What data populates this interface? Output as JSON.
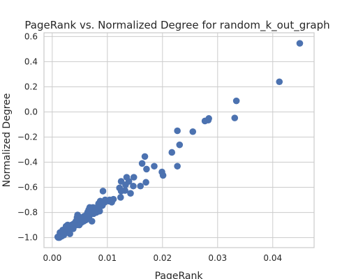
{
  "chart_data": {
    "type": "scatter",
    "title": "PageRank vs. Normalized Degree for random_k_out_graph",
    "xlabel": "PageRank",
    "ylabel": "Normalized Degree",
    "xlim": [
      -0.0015,
      0.0475
    ],
    "ylim": [
      -1.08,
      0.63
    ],
    "xticks": [
      0.0,
      0.01,
      0.02,
      0.03,
      0.04
    ],
    "xtick_labels": [
      "0.00",
      "0.01",
      "0.02",
      "0.03",
      "0.04"
    ],
    "yticks": [
      -1.0,
      -0.8,
      -0.6,
      -0.4,
      -0.2,
      0.0,
      0.2,
      0.4,
      0.6
    ],
    "ytick_labels": [
      "−1.0",
      "−0.8",
      "−0.6",
      "−0.4",
      "−0.2",
      "0.0",
      "0.2",
      "0.4",
      "0.6"
    ],
    "grid": true,
    "color": "#4c72b0",
    "points": [
      [
        0.0449,
        0.546
      ],
      [
        0.0412,
        0.24
      ],
      [
        0.0334,
        0.088
      ],
      [
        0.0331,
        -0.048
      ],
      [
        0.0284,
        -0.052
      ],
      [
        0.0283,
        -0.065
      ],
      [
        0.0277,
        -0.072
      ],
      [
        0.0255,
        -0.157
      ],
      [
        0.0227,
        -0.15
      ],
      [
        0.0231,
        -0.262
      ],
      [
        0.0217,
        -0.322
      ],
      [
        0.0227,
        -0.432
      ],
      [
        0.0199,
        -0.478
      ],
      [
        0.0201,
        -0.505
      ],
      [
        0.0185,
        -0.432
      ],
      [
        0.0168,
        -0.355
      ],
      [
        0.0163,
        -0.41
      ],
      [
        0.0171,
        -0.455
      ],
      [
        0.017,
        -0.56
      ],
      [
        0.016,
        -0.59
      ],
      [
        0.0148,
        -0.52
      ],
      [
        0.0139,
        -0.553
      ],
      [
        0.0147,
        -0.59
      ],
      [
        0.0135,
        -0.52
      ],
      [
        0.0133,
        -0.58
      ],
      [
        0.0132,
        -0.625
      ],
      [
        0.0142,
        -0.648
      ],
      [
        0.0125,
        -0.553
      ],
      [
        0.0122,
        -0.605
      ],
      [
        0.0125,
        -0.63
      ],
      [
        0.0124,
        -0.68
      ],
      [
        0.0111,
        -0.695
      ],
      [
        0.0108,
        -0.718
      ],
      [
        0.0104,
        -0.7
      ],
      [
        0.0103,
        -0.71
      ],
      [
        0.0096,
        -0.7
      ],
      [
        0.0095,
        -0.72
      ],
      [
        0.0092,
        -0.63
      ],
      [
        0.0091,
        -0.745
      ],
      [
        0.0088,
        -0.75
      ],
      [
        0.0084,
        -0.73
      ],
      [
        0.0081,
        -0.76
      ],
      [
        0.0086,
        -0.79
      ],
      [
        0.008,
        -0.8
      ],
      [
        0.0077,
        -0.79
      ],
      [
        0.0075,
        -0.81
      ],
      [
        0.0074,
        -0.76
      ],
      [
        0.0072,
        -0.785
      ],
      [
        0.007,
        -0.8
      ],
      [
        0.0068,
        -0.76
      ],
      [
        0.0066,
        -0.78
      ],
      [
        0.0064,
        -0.8
      ],
      [
        0.0062,
        -0.82
      ],
      [
        0.0064,
        -0.85
      ],
      [
        0.0067,
        -0.83
      ],
      [
        0.0072,
        -0.87
      ],
      [
        0.0058,
        -0.83
      ],
      [
        0.0057,
        -0.87
      ],
      [
        0.0055,
        -0.86
      ],
      [
        0.0053,
        -0.88
      ],
      [
        0.005,
        -0.86
      ],
      [
        0.0048,
        -0.88
      ],
      [
        0.0046,
        -0.82
      ],
      [
        0.0045,
        -0.84
      ],
      [
        0.0044,
        -0.9
      ],
      [
        0.0043,
        -0.87
      ],
      [
        0.0041,
        -0.9
      ],
      [
        0.0039,
        -0.89
      ],
      [
        0.0037,
        -0.92
      ],
      [
        0.0035,
        -0.9
      ],
      [
        0.0033,
        -0.93
      ],
      [
        0.0031,
        -0.91
      ],
      [
        0.0029,
        -0.95
      ],
      [
        0.0028,
        -0.9
      ],
      [
        0.0026,
        -0.92
      ],
      [
        0.0024,
        -0.96
      ],
      [
        0.0022,
        -0.94
      ],
      [
        0.0021,
        -0.98
      ],
      [
        0.002,
        -0.96
      ],
      [
        0.0019,
        -0.94
      ],
      [
        0.0017,
        -0.99
      ],
      [
        0.0016,
        -0.975
      ],
      [
        0.0014,
        -0.96
      ],
      [
        0.0013,
        -1.0
      ],
      [
        0.0012,
        -0.99
      ],
      [
        0.0011,
        -1.0
      ],
      [
        0.001,
        -0.995
      ],
      [
        0.0025,
        -0.91
      ],
      [
        0.0032,
        -0.97
      ],
      [
        0.0038,
        -0.93
      ],
      [
        0.0049,
        -0.9
      ],
      [
        0.0052,
        -0.84
      ],
      [
        0.0061,
        -0.86
      ],
      [
        0.0079,
        -0.77
      ],
      [
        0.0087,
        -0.71
      ]
    ]
  }
}
